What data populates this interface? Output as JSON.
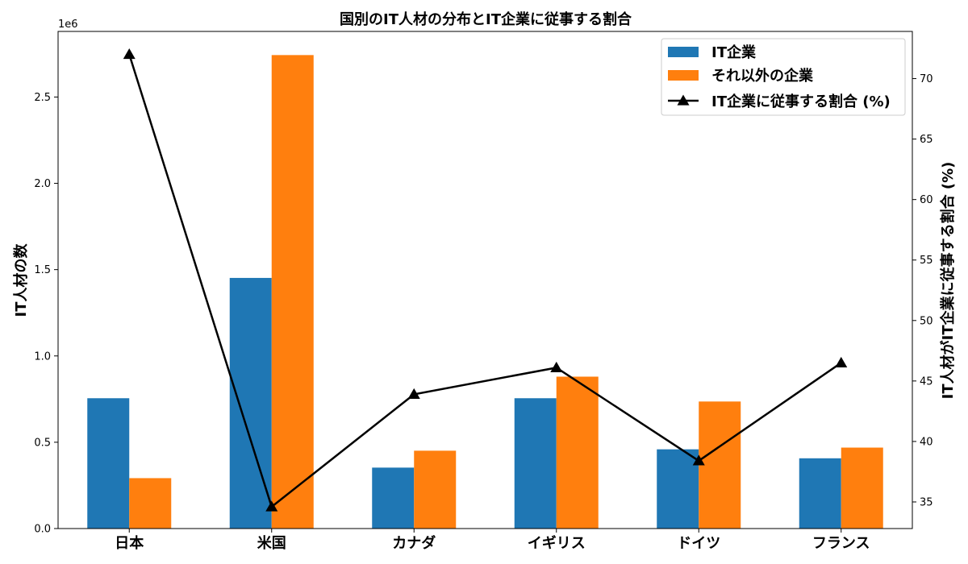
{
  "chart_data": {
    "type": "bar",
    "title": "国別のIT人材の分布とIT企業に従事する割合",
    "categories": [
      "日本",
      "米国",
      "カナダ",
      "イギリス",
      "ドイツ",
      "フランス"
    ],
    "series": [
      {
        "name": "IT企業",
        "color": "#1f77b4",
        "values": [
          755000,
          1452000,
          353000,
          755000,
          459000,
          407000
        ]
      },
      {
        "name": "それ以外の企業",
        "color": "#ff7f0e",
        "values": [
          292000,
          2743000,
          451000,
          880000,
          736000,
          469000
        ]
      }
    ],
    "line_series": {
      "name": "IT企業に従事する割合 (%)",
      "color": "#000000",
      "marker": "triangle",
      "axis": "right",
      "values": [
        72.0,
        34.6,
        43.9,
        46.1,
        38.4,
        46.5
      ]
    },
    "ylabel": "IT人材の数",
    "ylabel_right": "IT人材がIT企業に従事する割合 (%)",
    "y_scale_label": "1e6",
    "ylim": [
      0,
      2880000
    ],
    "ylim_right": [
      32.8,
      73.9
    ],
    "yticks": [
      0,
      500000,
      1000000,
      1500000,
      2000000,
      2500000
    ],
    "ytick_labels": [
      "0.0",
      "0.5",
      "1.0",
      "1.5",
      "2.0",
      "2.5"
    ],
    "yticks_right": [
      35,
      40,
      45,
      50,
      55,
      60,
      65,
      70
    ],
    "ytick_labels_right": [
      "35",
      "40",
      "45",
      "50",
      "55",
      "60",
      "65",
      "70"
    ],
    "legend_position": "top-right",
    "grid": false
  }
}
